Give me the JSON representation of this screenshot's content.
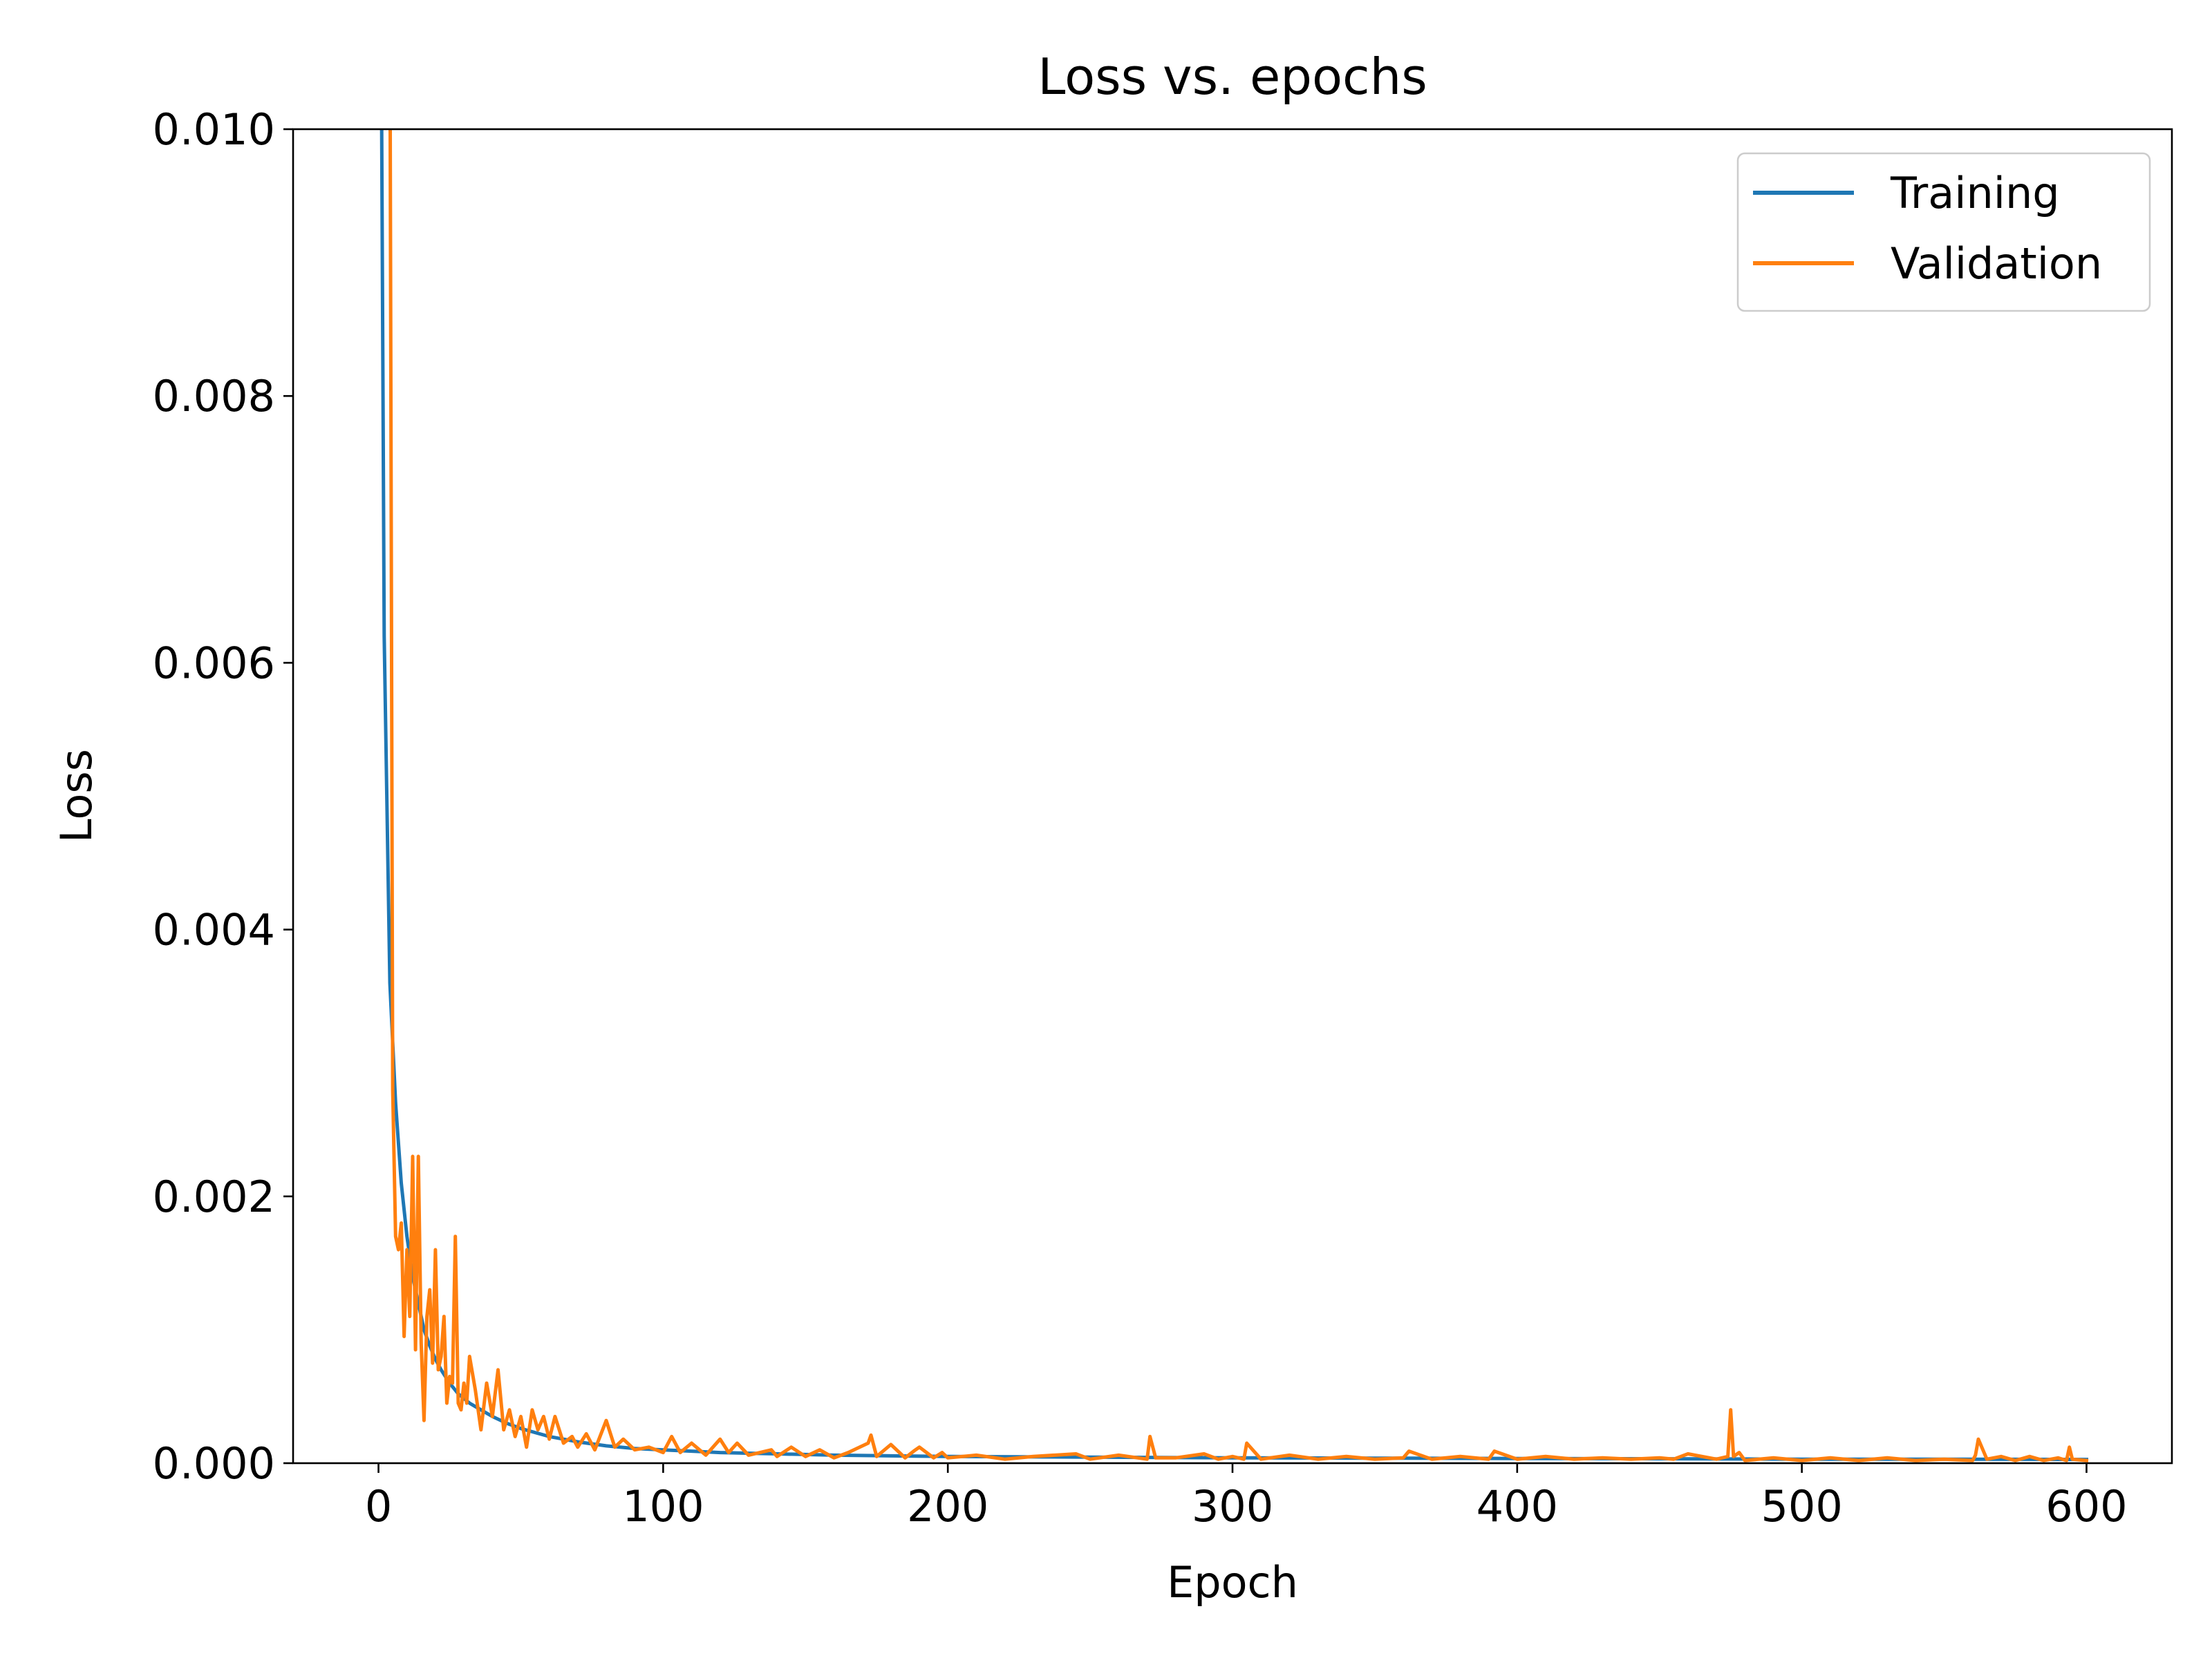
{
  "chart_data": {
    "type": "line",
    "title": "Loss vs. epochs",
    "xlabel": "Epoch",
    "ylabel": "Loss",
    "xlim": [
      -30,
      630
    ],
    "ylim": [
      0,
      0.01
    ],
    "xticks": [
      0,
      100,
      200,
      300,
      400,
      500,
      600
    ],
    "xtick_labels": [
      "0",
      "100",
      "200",
      "300",
      "400",
      "500",
      "600"
    ],
    "yticks": [
      0,
      0.002,
      0.004,
      0.006,
      0.008,
      0.01
    ],
    "ytick_labels": [
      "0.000",
      "0.002",
      "0.004",
      "0.006",
      "0.008",
      "0.010"
    ],
    "grid": false,
    "legend_position": "top-right",
    "series": [
      {
        "name": "Training",
        "color": "#1f77b4",
        "x": [
          0,
          1,
          2,
          4,
          6,
          8,
          10,
          12,
          14,
          16,
          18,
          20,
          22,
          25,
          28,
          32,
          36,
          40,
          45,
          50,
          55,
          60,
          65,
          70,
          80,
          90,
          100,
          120,
          140,
          160,
          180,
          200,
          250,
          300,
          350,
          400,
          450,
          500,
          550,
          600
        ],
        "y": [
          0.0135,
          0.0105,
          0.0062,
          0.0036,
          0.0027,
          0.0021,
          0.0017,
          0.0014,
          0.0012,
          0.001,
          0.00088,
          0.00078,
          0.0007,
          0.0006,
          0.00052,
          0.00045,
          0.0004,
          0.00035,
          0.0003,
          0.00026,
          0.00023,
          0.0002,
          0.00018,
          0.00016,
          0.00013,
          0.00011,
          0.0001,
          8e-05,
          7e-05,
          6e-05,
          5.5e-05,
          5e-05,
          4.5e-05,
          4e-05,
          3.8e-05,
          3.5e-05,
          3.3e-05,
          3e-05,
          3e-05,
          2.8e-05
        ]
      },
      {
        "name": "Validation",
        "color": "#ff7f0e",
        "x": [
          3,
          4,
          5,
          6,
          7,
          8,
          9,
          10,
          11,
          12,
          13,
          14,
          15,
          16,
          17,
          18,
          19,
          20,
          21,
          22,
          23,
          24,
          25,
          26,
          27,
          28,
          29,
          30,
          31,
          32,
          34,
          36,
          38,
          40,
          42,
          44,
          46,
          48,
          50,
          52,
          54,
          56,
          58,
          60,
          62,
          65,
          68,
          70,
          73,
          76,
          80,
          83,
          86,
          90,
          95,
          100,
          103,
          106,
          110,
          115,
          120,
          123,
          126,
          130,
          138,
          140,
          145,
          150,
          155,
          160,
          165,
          172,
          173,
          175,
          180,
          185,
          188,
          190,
          195,
          198,
          200,
          210,
          220,
          230,
          245,
          250,
          260,
          270,
          271,
          273,
          280,
          290,
          295,
          300,
          304,
          305,
          310,
          320,
          330,
          340,
          350,
          360,
          362,
          370,
          380,
          390,
          392,
          400,
          410,
          420,
          430,
          440,
          450,
          455,
          460,
          470,
          474,
          475,
          476,
          478,
          480,
          490,
          500,
          510,
          520,
          530,
          540,
          550,
          560,
          561,
          562,
          565,
          570,
          575,
          580,
          585,
          590,
          593,
          594,
          595,
          600
        ],
        "y": [
          0.0135,
          0.011,
          0.0028,
          0.0017,
          0.0016,
          0.0018,
          0.00095,
          0.0016,
          0.0011,
          0.0023,
          0.00085,
          0.0023,
          0.0009,
          0.00032,
          0.0011,
          0.0013,
          0.00075,
          0.0016,
          0.0007,
          0.0008,
          0.0011,
          0.00045,
          0.00065,
          0.0006,
          0.0017,
          0.00045,
          0.0004,
          0.0006,
          0.00045,
          0.0008,
          0.00055,
          0.00025,
          0.0006,
          0.00035,
          0.0007,
          0.00025,
          0.0004,
          0.0002,
          0.00035,
          0.00012,
          0.0004,
          0.00025,
          0.00035,
          0.00018,
          0.00035,
          0.00015,
          0.0002,
          0.00012,
          0.00022,
          0.0001,
          0.00032,
          0.00012,
          0.00018,
          0.0001,
          0.00012,
          8e-05,
          0.0002,
          8e-05,
          0.00015,
          6e-05,
          0.00018,
          8e-05,
          0.00015,
          6e-05,
          0.0001,
          5e-05,
          0.00012,
          5e-05,
          0.0001,
          4e-05,
          8e-05,
          0.00015,
          0.00021,
          5e-05,
          0.00014,
          4e-05,
          9e-05,
          0.00012,
          4e-05,
          8e-05,
          4e-05,
          6e-05,
          3e-05,
          5e-05,
          7e-05,
          3e-05,
          6e-05,
          3e-05,
          0.0002,
          4e-05,
          4e-05,
          7e-05,
          3e-05,
          5e-05,
          3e-05,
          0.00015,
          3e-05,
          6e-05,
          3e-05,
          5e-05,
          3e-05,
          4e-05,
          9e-05,
          3e-05,
          5e-05,
          3e-05,
          9e-05,
          3e-05,
          5e-05,
          3e-05,
          4e-05,
          3e-05,
          4e-05,
          3e-05,
          7e-05,
          3e-05,
          5e-05,
          0.0004,
          5e-05,
          8e-05,
          2e-05,
          4e-05,
          2e-05,
          4e-05,
          2e-05,
          4e-05,
          2e-05,
          3e-05,
          2e-05,
          6e-05,
          0.00018,
          3e-05,
          5e-05,
          2e-05,
          5e-05,
          2e-05,
          4e-05,
          2e-05,
          0.00012,
          3e-05,
          2e-05
        ]
      }
    ]
  }
}
